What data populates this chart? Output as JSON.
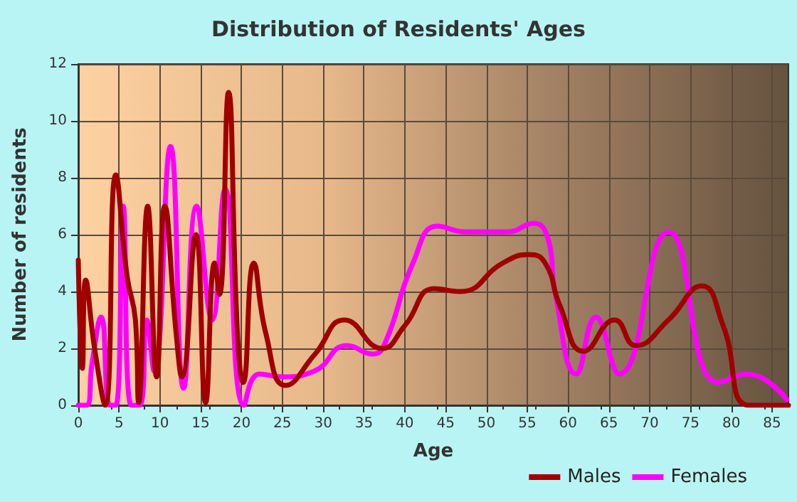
{
  "chart_data": {
    "type": "line",
    "title": "Distribution of Residents' Ages",
    "xlabel": "Age",
    "ylabel": "Number of residents",
    "xlim": [
      0,
      87
    ],
    "xticks": [
      0,
      5,
      10,
      15,
      20,
      25,
      30,
      35,
      40,
      45,
      50,
      55,
      60,
      65,
      70,
      75,
      80,
      85
    ],
    "ylim": [
      0,
      12
    ],
    "yticks": [
      0,
      2,
      4,
      6,
      8,
      10,
      12
    ],
    "grid": true,
    "legend": "bottom right",
    "marker": "none",
    "line_style": "solid",
    "series": [
      {
        "name": "Males",
        "color": "#a00000",
        "x": [
          0,
          0.5,
          0.9,
          2,
          3.3,
          4.6,
          6,
          7,
          7.4,
          8.5,
          9.6,
          10.6,
          12,
          12.7,
          14.4,
          15.6,
          16.7,
          17.3,
          18.4,
          19.5,
          20.2,
          21.5,
          23,
          25.4,
          29,
          32.6,
          37.2,
          40,
          43.6,
          46.8,
          52,
          55.2,
          57.2,
          59,
          61.9,
          65.7,
          68.3,
          72.3,
          76.4,
          79,
          82.2,
          87
        ],
        "values": [
          5.1,
          1.3,
          4.4,
          2,
          0,
          8.1,
          4.5,
          3,
          0.1,
          7,
          1,
          7,
          2.5,
          1,
          6,
          0.1,
          5,
          3.9,
          11,
          2.5,
          0.8,
          5,
          2.5,
          0.7,
          1.8,
          3,
          2,
          2.8,
          4.1,
          4,
          5,
          5.3,
          5,
          3.5,
          1.9,
          3,
          2.1,
          3,
          4.2,
          2.8,
          0,
          0
        ]
      },
      {
        "name": "Females",
        "color": "#ff00ff",
        "x": [
          0,
          1,
          1.7,
          2.8,
          3.9,
          4.6,
          5.5,
          6.5,
          7.5,
          8.4,
          9.3,
          11.3,
          12.9,
          14.5,
          16.4,
          18,
          20.3,
          22.2,
          25,
          28.9,
          32.9,
          36.1,
          37.6,
          41,
          44,
          47.4,
          52.6,
          55.8,
          57.6,
          58.4,
          61,
          63.4,
          66.3,
          72.3,
          78.4,
          81.9,
          86.8
        ],
        "values": [
          0,
          0,
          1.5,
          3.1,
          0,
          0,
          7,
          0,
          0,
          3,
          1.2,
          9.1,
          0.6,
          7,
          3,
          7.6,
          0,
          1.1,
          1,
          1.2,
          2.1,
          1.8,
          2.2,
          5,
          6.3,
          6.1,
          6.1,
          6.4,
          5.8,
          4,
          1.1,
          3.1,
          1.1,
          6.1,
          0.8,
          1.1,
          0.2
        ]
      }
    ]
  }
}
